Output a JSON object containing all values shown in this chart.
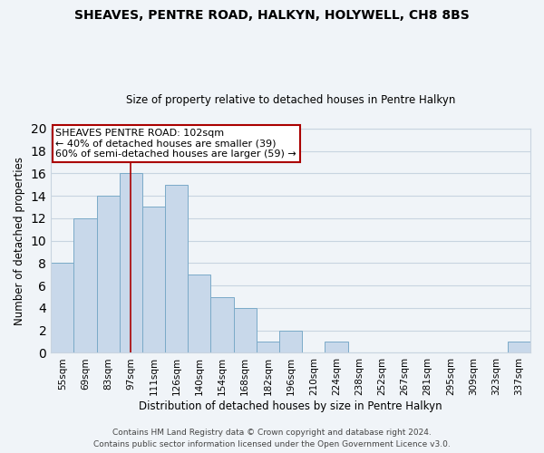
{
  "title": "SHEAVES, PENTRE ROAD, HALKYN, HOLYWELL, CH8 8BS",
  "subtitle": "Size of property relative to detached houses in Pentre Halkyn",
  "xlabel": "Distribution of detached houses by size in Pentre Halkyn",
  "ylabel": "Number of detached properties",
  "footer1": "Contains HM Land Registry data © Crown copyright and database right 2024.",
  "footer2": "Contains public sector information licensed under the Open Government Licence v3.0.",
  "bin_labels": [
    "55sqm",
    "69sqm",
    "83sqm",
    "97sqm",
    "111sqm",
    "126sqm",
    "140sqm",
    "154sqm",
    "168sqm",
    "182sqm",
    "196sqm",
    "210sqm",
    "224sqm",
    "238sqm",
    "252sqm",
    "267sqm",
    "281sqm",
    "295sqm",
    "309sqm",
    "323sqm",
    "337sqm"
  ],
  "bar_heights": [
    8,
    12,
    14,
    16,
    13,
    15,
    7,
    5,
    4,
    1,
    2,
    0,
    1,
    0,
    0,
    0,
    0,
    0,
    0,
    0,
    1
  ],
  "bar_color": "#c8d8ea",
  "bar_edge_color": "#7aaac8",
  "vline_x_idx": 3,
  "vline_color": "#aa0000",
  "annotation_title": "SHEAVES PENTRE ROAD: 102sqm",
  "annotation_line1": "← 40% of detached houses are smaller (39)",
  "annotation_line2": "60% of semi-detached houses are larger (59) →",
  "annotation_box_color": "#ffffff",
  "annotation_box_edge": "#aa0000",
  "ylim": [
    0,
    20
  ],
  "yticks": [
    0,
    2,
    4,
    6,
    8,
    10,
    12,
    14,
    16,
    18,
    20
  ],
  "background_color": "#f0f4f8",
  "grid_color": "#c8d4e0",
  "title_fontsize": 10,
  "subtitle_fontsize": 8.5,
  "ylabel_fontsize": 8.5,
  "xlabel_fontsize": 8.5,
  "tick_fontsize": 7.5,
  "annotation_fontsize": 8,
  "footer_fontsize": 6.5
}
